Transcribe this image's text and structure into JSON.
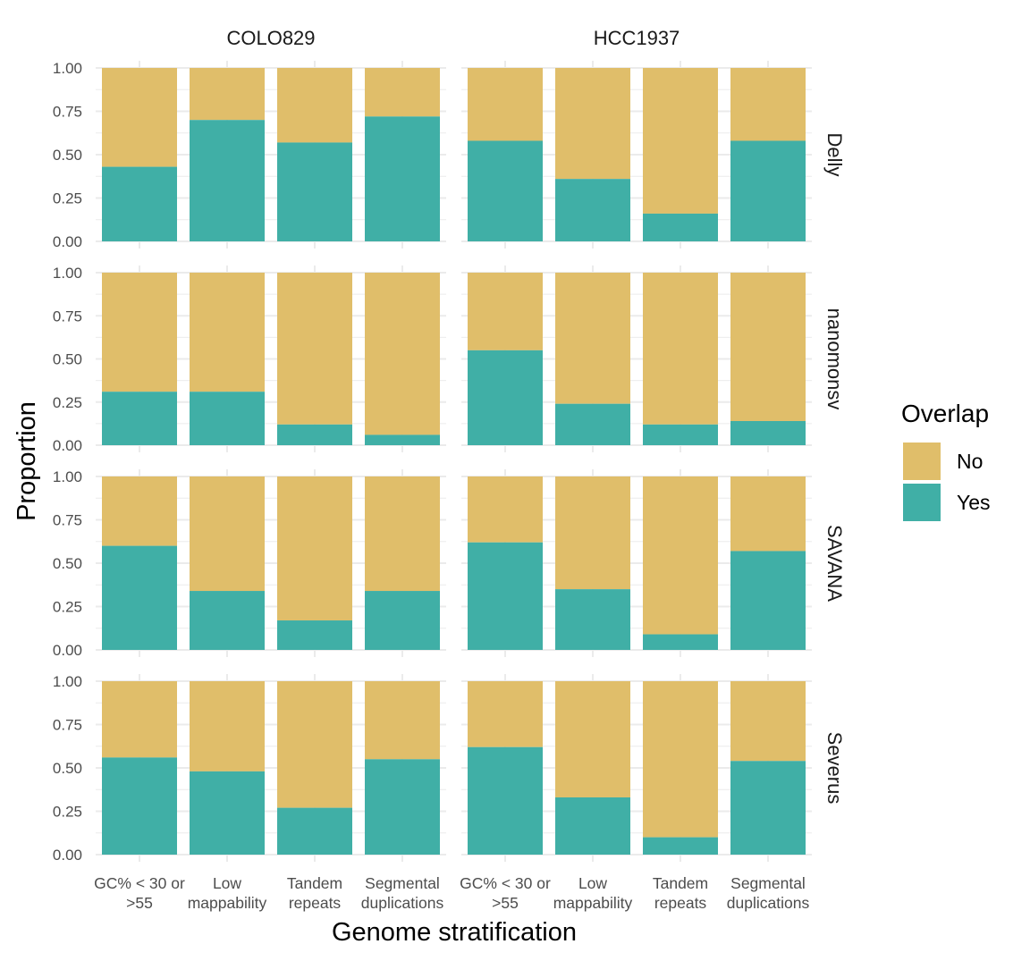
{
  "chart_data": {
    "type": "bar",
    "stacked": true,
    "xlabel": "Genome stratification",
    "ylabel": "Proportion",
    "ylim": [
      0,
      1
    ],
    "y_ticks": [
      "0.00",
      "0.25",
      "0.50",
      "0.75",
      "1.00"
    ],
    "categories": [
      [
        "GC% < 30 or",
        ">55"
      ],
      [
        "Low",
        "mappability"
      ],
      [
        "Tandem",
        "repeats"
      ],
      [
        "Segmental",
        "duplications"
      ]
    ],
    "facet_columns": [
      "COLO829",
      "HCC1937"
    ],
    "facet_rows": [
      "Delly",
      "nanomonsv",
      "SAVANA",
      "Severus"
    ],
    "legend": {
      "title": "Overlap",
      "position": "right",
      "entries": [
        {
          "label": "No",
          "color": "#E0BE6A"
        },
        {
          "label": "Yes",
          "color": "#40AFA6"
        }
      ]
    },
    "grid": true,
    "panels": [
      {
        "row": "Delly",
        "column": "COLO829",
        "yes": [
          0.43,
          0.7,
          0.57,
          0.72
        ]
      },
      {
        "row": "Delly",
        "column": "HCC1937",
        "yes": [
          0.58,
          0.36,
          0.16,
          0.58
        ]
      },
      {
        "row": "nanomonsv",
        "column": "COLO829",
        "yes": [
          0.31,
          0.31,
          0.12,
          0.06
        ]
      },
      {
        "row": "nanomonsv",
        "column": "HCC1937",
        "yes": [
          0.55,
          0.24,
          0.12,
          0.14
        ]
      },
      {
        "row": "SAVANA",
        "column": "COLO829",
        "yes": [
          0.6,
          0.34,
          0.17,
          0.34
        ]
      },
      {
        "row": "SAVANA",
        "column": "HCC1937",
        "yes": [
          0.62,
          0.35,
          0.09,
          0.57
        ]
      },
      {
        "row": "Severus",
        "column": "COLO829",
        "yes": [
          0.56,
          0.48,
          0.27,
          0.55
        ]
      },
      {
        "row": "Severus",
        "column": "HCC1937",
        "yes": [
          0.62,
          0.33,
          0.1,
          0.54
        ]
      }
    ]
  }
}
